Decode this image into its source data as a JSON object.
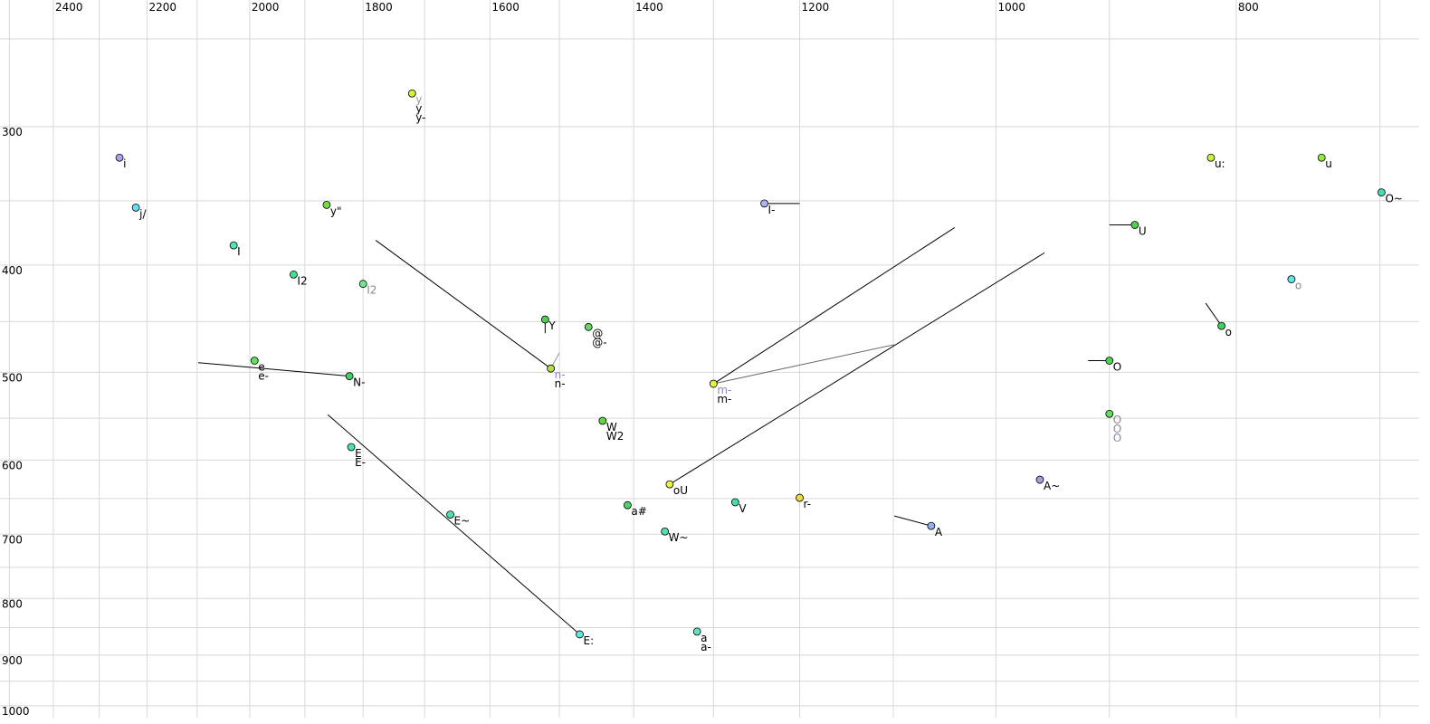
{
  "chart_data": {
    "type": "scatter",
    "xscale": "log",
    "yscale": "log",
    "xlim": [
      2522,
      675
    ],
    "ylim": [
      250,
      1025
    ],
    "xticks": [
      2400,
      2200,
      2000,
      1800,
      1600,
      1400,
      1200,
      1000,
      800
    ],
    "x_minor_ticks": [
      2500,
      2300,
      2100,
      1900,
      1700,
      1500,
      1300,
      1100,
      900,
      700
    ],
    "yticks": [
      300,
      400,
      500,
      600,
      700,
      800,
      900,
      1000
    ],
    "y_minor_ticks": [
      250,
      350,
      450,
      550,
      650,
      750,
      850,
      950
    ],
    "grid": true,
    "points": [
      {
        "x": 2257,
        "y": 320,
        "color": "#b0a0e8",
        "labels": [
          "i"
        ],
        "label_colors": [
          "#000000"
        ]
      },
      {
        "x": 2223,
        "y": 355,
        "color": "#60e0f0",
        "labels": [
          "j/"
        ],
        "label_colors": [
          "#000000"
        ]
      },
      {
        "x": 2030,
        "y": 384,
        "color": "#50e8b0",
        "labels": [
          "I"
        ],
        "label_colors": [
          "#000000"
        ]
      },
      {
        "x": 1920,
        "y": 408,
        "color": "#40e090",
        "labels": [
          "I2"
        ],
        "label_colors": [
          "#000000"
        ]
      },
      {
        "x": 1800,
        "y": 416,
        "color": "#70e890",
        "labels": [
          "I2"
        ],
        "label_colors": [
          "#888888"
        ]
      },
      {
        "x": 1862,
        "y": 353,
        "color": "#70e040",
        "labels": [
          "y\""
        ],
        "label_colors": [
          "#000000"
        ]
      },
      {
        "x": 1720,
        "y": 280,
        "color": "#d8f040",
        "labels": [
          "y",
          "y",
          "y-"
        ],
        "label_colors": [
          "#999999",
          "#000000",
          "#000000"
        ]
      },
      {
        "x": 1991,
        "y": 488,
        "color": "#60e060",
        "labels": [
          "e",
          "e-"
        ],
        "label_colors": [
          "#000000",
          "#000000"
        ]
      },
      {
        "x": 1823,
        "y": 504,
        "color": "#40d060",
        "labels": [
          "N-"
        ],
        "label_colors": [
          "#000000"
        ]
      },
      {
        "x": 1820,
        "y": 584,
        "color": "#50e0a0",
        "labels": [
          "E",
          "E-"
        ],
        "label_colors": [
          "#000000",
          "#000000"
        ]
      },
      {
        "x": 1660,
        "y": 672,
        "color": "#50e0b0",
        "labels": [
          "E~"
        ],
        "label_colors": [
          "#000000"
        ]
      },
      {
        "x": 1472,
        "y": 862,
        "color": "#60e8e0",
        "labels": [
          "E:"
        ],
        "label_colors": [
          "#000000"
        ]
      },
      {
        "x": 1520,
        "y": 448,
        "color": "#50d050",
        "labels": [
          "Y"
        ],
        "label_colors": [
          "#000000"
        ]
      },
      {
        "x": 1460,
        "y": 455,
        "color": "#60d860",
        "labels": [
          "@",
          "@-"
        ],
        "label_colors": [
          "#000000",
          "#000000"
        ]
      },
      {
        "x": 1512,
        "y": 496,
        "color": "#b0e040",
        "labels": [
          "n-",
          "n-"
        ],
        "label_colors": [
          "#8888bb",
          "#000000"
        ]
      },
      {
        "x": 1441,
        "y": 553,
        "color": "#60d840",
        "labels": [
          "W",
          "W2"
        ],
        "label_colors": [
          "#000000",
          "#000000"
        ]
      },
      {
        "x": 1408,
        "y": 659,
        "color": "#50d070",
        "labels": [
          "a#"
        ],
        "label_colors": [
          "#000000"
        ]
      },
      {
        "x": 1354,
        "y": 631,
        "color": "#e8f040",
        "labels": [
          "oU"
        ],
        "label_colors": [
          "#000000"
        ]
      },
      {
        "x": 1360,
        "y": 696,
        "color": "#50e0b0",
        "labels": [
          "W~"
        ],
        "label_colors": [
          "#000000"
        ]
      },
      {
        "x": 1320,
        "y": 857,
        "color": "#60e0c0",
        "labels": [
          "a",
          "a-"
        ],
        "label_colors": [
          "#000000",
          "#000000"
        ]
      },
      {
        "x": 1274,
        "y": 655,
        "color": "#40e0a0",
        "labels": [
          "V"
        ],
        "label_colors": [
          "#000000"
        ]
      },
      {
        "x": 1200,
        "y": 649,
        "color": "#f0d840",
        "labels": [
          "r-"
        ],
        "label_colors": [
          "#000000"
        ]
      },
      {
        "x": 1300,
        "y": 512,
        "color": "#e8f040",
        "labels": [
          "m-",
          "m-"
        ],
        "label_colors": [
          "#8888bb",
          "#000000"
        ]
      },
      {
        "x": 1240,
        "y": 352,
        "color": "#b0b0f0",
        "labels": [
          "I-"
        ],
        "label_colors": [
          "#000000"
        ]
      },
      {
        "x": 1062,
        "y": 688,
        "color": "#90b0f0",
        "labels": [
          "A"
        ],
        "label_colors": [
          "#000000"
        ]
      },
      {
        "x": 960,
        "y": 625,
        "color": "#a0a0e0",
        "labels": [
          "A~"
        ],
        "label_colors": [
          "#000000"
        ]
      },
      {
        "x": 900,
        "y": 488,
        "color": "#50d050",
        "labels": [
          "O"
        ],
        "label_colors": [
          "#000000"
        ]
      },
      {
        "x": 900,
        "y": 545,
        "color": "#60e060",
        "labels": [
          "O",
          "O",
          "O"
        ],
        "label_colors": [
          "#8888a0",
          "#8888a0",
          "#8888a0"
        ]
      },
      {
        "x": 879,
        "y": 368,
        "color": "#50d050",
        "labels": [
          "U"
        ],
        "label_colors": [
          "#000000"
        ]
      },
      {
        "x": 819,
        "y": 320,
        "color": "#c8f040",
        "labels": [
          "u:"
        ],
        "label_colors": [
          "#000000"
        ]
      },
      {
        "x": 739,
        "y": 320,
        "color": "#90e840",
        "labels": [
          "u"
        ],
        "label_colors": [
          "#000000"
        ]
      },
      {
        "x": 699,
        "y": 344,
        "color": "#40e0b0",
        "labels": [
          "O~"
        ],
        "label_colors": [
          "#000000"
        ]
      },
      {
        "x": 760,
        "y": 412,
        "color": "#60e8e8",
        "labels": [
          "o"
        ],
        "label_colors": [
          "#888888"
        ]
      },
      {
        "x": 811,
        "y": 454,
        "color": "#40d060",
        "labels": [
          "o"
        ],
        "label_colors": [
          "#000000"
        ]
      }
    ],
    "lines": [
      {
        "x": [
          2098,
          1823
        ],
        "y": [
          490,
          504
        ],
        "color": "#000000"
      },
      {
        "x": [
          1779,
          1512
        ],
        "y": [
          380,
          496
        ],
        "color": "#000000"
      },
      {
        "x": [
          1860,
          1472
        ],
        "y": [
          546,
          862
        ],
        "color": "#000000"
      },
      {
        "x": [
          1300,
          1039
        ],
        "y": [
          512,
          370
        ],
        "color": "#000000"
      },
      {
        "x": [
          1354,
          956
        ],
        "y": [
          631,
          390
        ],
        "color": "#000000"
      },
      {
        "x": [
          1300,
          1099
        ],
        "y": [
          512,
          472
        ],
        "color": "#666666"
      },
      {
        "x": [
          1240,
          1200
        ],
        "y": [
          352,
          352
        ],
        "color": "#000000"
      },
      {
        "x": [
          900,
          879
        ],
        "y": [
          368,
          368
        ],
        "color": "#000000"
      },
      {
        "x": [
          918,
          900
        ],
        "y": [
          488,
          488
        ],
        "color": "#000000"
      },
      {
        "x": [
          823,
          811
        ],
        "y": [
          433,
          454
        ],
        "color": "#000000"
      },
      {
        "x": [
          1099,
          1062
        ],
        "y": [
          674,
          688
        ],
        "color": "#000000"
      },
      {
        "x": [
          1512,
          1500
        ],
        "y": [
          496,
          480
        ],
        "color": "#999999"
      },
      {
        "x": [
          1520,
          1520
        ],
        "y": [
          448,
          461
        ],
        "color": "#000000"
      }
    ]
  }
}
